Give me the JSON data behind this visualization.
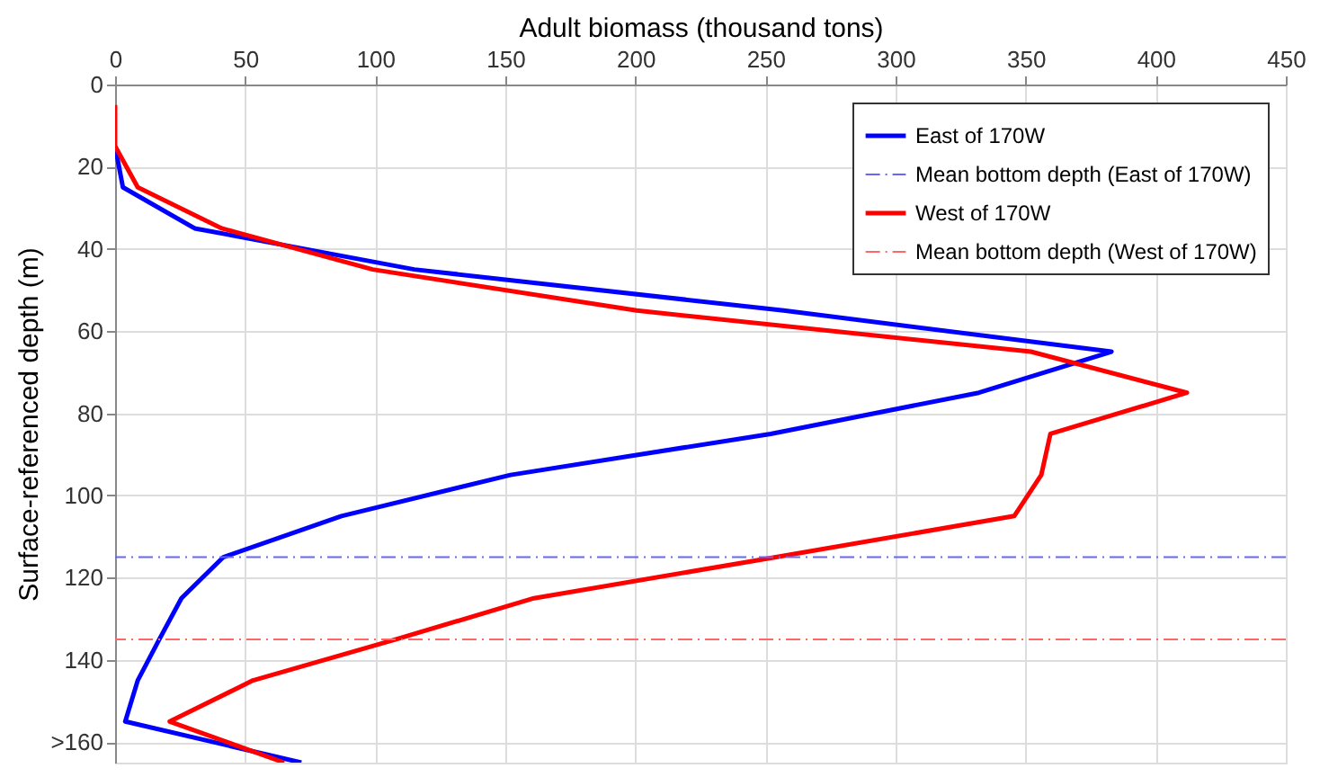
{
  "chart_data": {
    "type": "line",
    "xlabel": "Adult biomass (thousand tons)",
    "ylabel": "Surface-referenced depth (m)",
    "xlim": [
      0,
      450
    ],
    "xticks": [
      0,
      50,
      100,
      150,
      200,
      250,
      300,
      350,
      400,
      450
    ],
    "ylim": [
      165,
      0
    ],
    "yticks": [
      0,
      20,
      40,
      60,
      80,
      100,
      120,
      140,
      {
        "value": 160,
        "label": ">160"
      }
    ],
    "grid": true,
    "legend": "top right",
    "line_style": "solid",
    "marker": "none",
    "series": [
      {
        "name": "East of 170W",
        "color": "#0000ff",
        "x": [
          0,
          3,
          30.6,
          115,
          257,
          383,
          332,
          252,
          152,
          87,
          41.6,
          25.5,
          17,
          8.7,
          3.9,
          71.6
        ],
        "values": [
          15,
          25,
          35,
          45,
          55,
          65,
          75,
          85,
          95,
          105,
          115,
          125,
          135,
          145,
          155,
          165
        ]
      },
      {
        "name": "West of 170W",
        "color": "#ff0000",
        "x": [
          0,
          0,
          8.7,
          41,
          99,
          200.5,
          352,
          412,
          359.5,
          356,
          345.6,
          254,
          161,
          108,
          53,
          21,
          65
        ],
        "values": [
          5,
          15,
          25,
          35,
          45,
          55,
          65,
          75,
          85,
          95,
          105,
          115,
          125,
          135,
          145,
          155,
          165
        ]
      }
    ],
    "ref_lines": [
      {
        "axis": "y",
        "value": 115,
        "label": "Mean bottom depth (East of 170W)",
        "color": "#6666ff",
        "line_style": "dashdot"
      },
      {
        "axis": "y",
        "value": 135,
        "label": "Mean bottom depth (West of 170W)",
        "color": "#ff6666",
        "line_style": "dashdot"
      }
    ]
  }
}
